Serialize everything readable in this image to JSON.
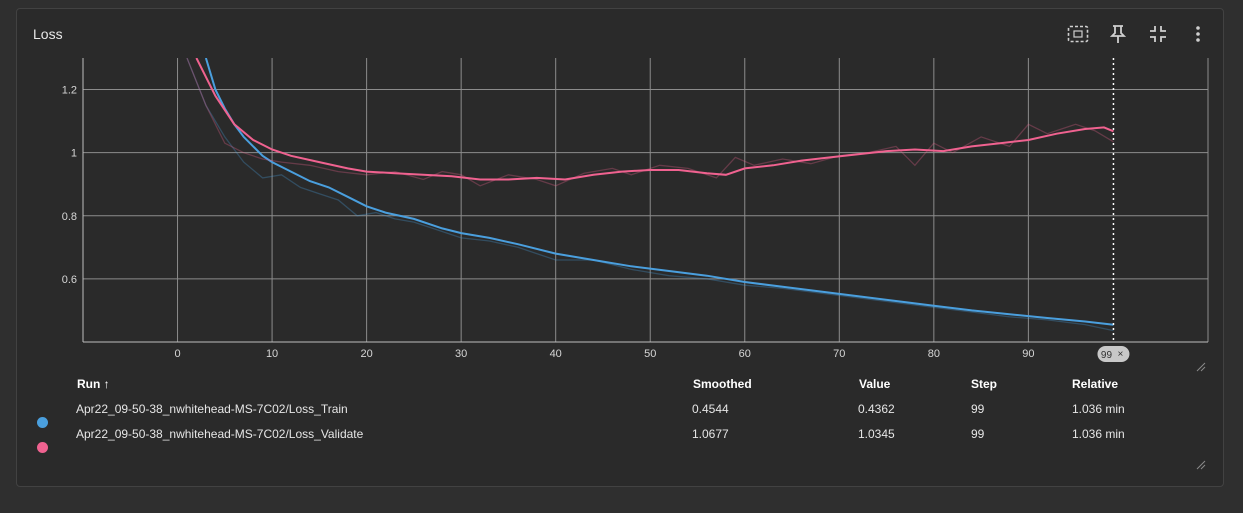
{
  "card": {
    "title": "Loss"
  },
  "toolbar": {
    "icons": [
      "fit-domain-icon",
      "pin-icon",
      "collapse-icon",
      "more-vert-icon"
    ]
  },
  "cursor_step_label": "99",
  "table": {
    "headers": {
      "run": "Run ↑",
      "smoothed": "Smoothed",
      "value": "Value",
      "step": "Step",
      "relative": "Relative"
    },
    "rows": [
      {
        "color": "#4a9fde",
        "run": "Apr22_09-50-38_nwhitehead-MS-7C02/Loss_Train",
        "smoothed": "0.4544",
        "value": "0.4362",
        "step": "99",
        "relative": "1.036 min"
      },
      {
        "color": "#f06290",
        "run": "Apr22_09-50-38_nwhitehead-MS-7C02/Loss_Validate",
        "smoothed": "1.0677",
        "value": "1.0345",
        "step": "99",
        "relative": "1.036 min"
      }
    ]
  },
  "chart_data": {
    "type": "line",
    "title": "Loss",
    "xlim": [
      -10,
      109
    ],
    "ylim": [
      0.4,
      1.3
    ],
    "x_ticks": [
      0,
      10,
      20,
      30,
      40,
      50,
      60,
      70,
      80,
      90
    ],
    "y_ticks": [
      0.6,
      0.8,
      1,
      1.2
    ],
    "x_tick_labels": [
      "0",
      "10",
      "20",
      "30",
      "40",
      "50",
      "60",
      "70",
      "80",
      "90"
    ],
    "y_tick_labels": [
      "0.6",
      "0.8",
      "1",
      "1.2"
    ],
    "grid": true,
    "series": [
      {
        "name": "Apr22_09-50-38_nwhitehead-MS-7C02/Loss_Train",
        "color": "#4a9fde",
        "smoothed": [
          [
            3,
            1.3
          ],
          [
            4,
            1.2
          ],
          [
            5,
            1.14
          ],
          [
            6,
            1.09
          ],
          [
            7,
            1.05
          ],
          [
            8,
            1.02
          ],
          [
            9,
            0.99
          ],
          [
            10,
            0.97
          ],
          [
            12,
            0.94
          ],
          [
            14,
            0.91
          ],
          [
            16,
            0.89
          ],
          [
            18,
            0.86
          ],
          [
            20,
            0.83
          ],
          [
            22,
            0.81
          ],
          [
            25,
            0.79
          ],
          [
            28,
            0.76
          ],
          [
            30,
            0.745
          ],
          [
            33,
            0.73
          ],
          [
            36,
            0.71
          ],
          [
            40,
            0.68
          ],
          [
            44,
            0.66
          ],
          [
            48,
            0.64
          ],
          [
            52,
            0.625
          ],
          [
            56,
            0.61
          ],
          [
            60,
            0.59
          ],
          [
            64,
            0.575
          ],
          [
            68,
            0.56
          ],
          [
            72,
            0.545
          ],
          [
            76,
            0.53
          ],
          [
            80,
            0.515
          ],
          [
            84,
            0.5
          ],
          [
            88,
            0.488
          ],
          [
            92,
            0.476
          ],
          [
            96,
            0.465
          ],
          [
            99,
            0.4544
          ]
        ],
        "raw": [
          [
            1,
            1.3
          ],
          [
            3,
            1.15
          ],
          [
            5,
            1.05
          ],
          [
            7,
            0.97
          ],
          [
            9,
            0.92
          ],
          [
            11,
            0.93
          ],
          [
            13,
            0.89
          ],
          [
            15,
            0.87
          ],
          [
            17,
            0.85
          ],
          [
            19,
            0.8
          ],
          [
            21,
            0.81
          ],
          [
            23,
            0.79
          ],
          [
            25,
            0.78
          ],
          [
            27,
            0.76
          ],
          [
            30,
            0.73
          ],
          [
            33,
            0.72
          ],
          [
            36,
            0.7
          ],
          [
            40,
            0.66
          ],
          [
            44,
            0.66
          ],
          [
            48,
            0.63
          ],
          [
            52,
            0.61
          ],
          [
            56,
            0.6
          ],
          [
            60,
            0.58
          ],
          [
            64,
            0.57
          ],
          [
            68,
            0.555
          ],
          [
            72,
            0.54
          ],
          [
            76,
            0.525
          ],
          [
            80,
            0.51
          ],
          [
            84,
            0.495
          ],
          [
            88,
            0.48
          ],
          [
            92,
            0.47
          ],
          [
            96,
            0.455
          ],
          [
            99,
            0.4362
          ]
        ]
      },
      {
        "name": "Apr22_09-50-38_nwhitehead-MS-7C02/Loss_Validate",
        "color": "#f06290",
        "smoothed": [
          [
            2,
            1.3
          ],
          [
            4,
            1.18
          ],
          [
            6,
            1.09
          ],
          [
            8,
            1.04
          ],
          [
            10,
            1.01
          ],
          [
            12,
            0.99
          ],
          [
            15,
            0.97
          ],
          [
            18,
            0.95
          ],
          [
            20,
            0.94
          ],
          [
            23,
            0.935
          ],
          [
            26,
            0.93
          ],
          [
            29,
            0.925
          ],
          [
            32,
            0.915
          ],
          [
            35,
            0.915
          ],
          [
            38,
            0.92
          ],
          [
            41,
            0.915
          ],
          [
            44,
            0.93
          ],
          [
            47,
            0.94
          ],
          [
            50,
            0.945
          ],
          [
            53,
            0.945
          ],
          [
            56,
            0.935
          ],
          [
            58,
            0.93
          ],
          [
            60,
            0.95
          ],
          [
            63,
            0.96
          ],
          [
            66,
            0.975
          ],
          [
            69,
            0.985
          ],
          [
            72,
            0.995
          ],
          [
            75,
            1.005
          ],
          [
            78,
            1.01
          ],
          [
            81,
            1.005
          ],
          [
            84,
            1.02
          ],
          [
            87,
            1.03
          ],
          [
            90,
            1.04
          ],
          [
            93,
            1.06
          ],
          [
            96,
            1.075
          ],
          [
            98,
            1.08
          ],
          [
            99,
            1.0677
          ]
        ],
        "raw": [
          [
            1,
            1.3
          ],
          [
            3,
            1.15
          ],
          [
            5,
            1.03
          ],
          [
            7,
            1.0
          ],
          [
            9,
            0.98
          ],
          [
            11,
            0.97
          ],
          [
            14,
            0.96
          ],
          [
            17,
            0.94
          ],
          [
            20,
            0.93
          ],
          [
            23,
            0.94
          ],
          [
            26,
            0.915
          ],
          [
            28,
            0.94
          ],
          [
            30,
            0.93
          ],
          [
            32,
            0.895
          ],
          [
            35,
            0.93
          ],
          [
            38,
            0.915
          ],
          [
            40,
            0.895
          ],
          [
            43,
            0.935
          ],
          [
            46,
            0.95
          ],
          [
            48,
            0.93
          ],
          [
            51,
            0.96
          ],
          [
            54,
            0.95
          ],
          [
            57,
            0.92
          ],
          [
            59,
            0.985
          ],
          [
            61,
            0.96
          ],
          [
            64,
            0.98
          ],
          [
            67,
            0.965
          ],
          [
            70,
            0.99
          ],
          [
            73,
            1.0
          ],
          [
            76,
            1.02
          ],
          [
            78,
            0.96
          ],
          [
            80,
            1.03
          ],
          [
            82,
            1.0
          ],
          [
            85,
            1.05
          ],
          [
            88,
            1.02
          ],
          [
            90,
            1.09
          ],
          [
            92,
            1.06
          ],
          [
            95,
            1.09
          ],
          [
            97,
            1.07
          ],
          [
            99,
            1.0345
          ]
        ]
      }
    ],
    "cursor_step": 99
  }
}
